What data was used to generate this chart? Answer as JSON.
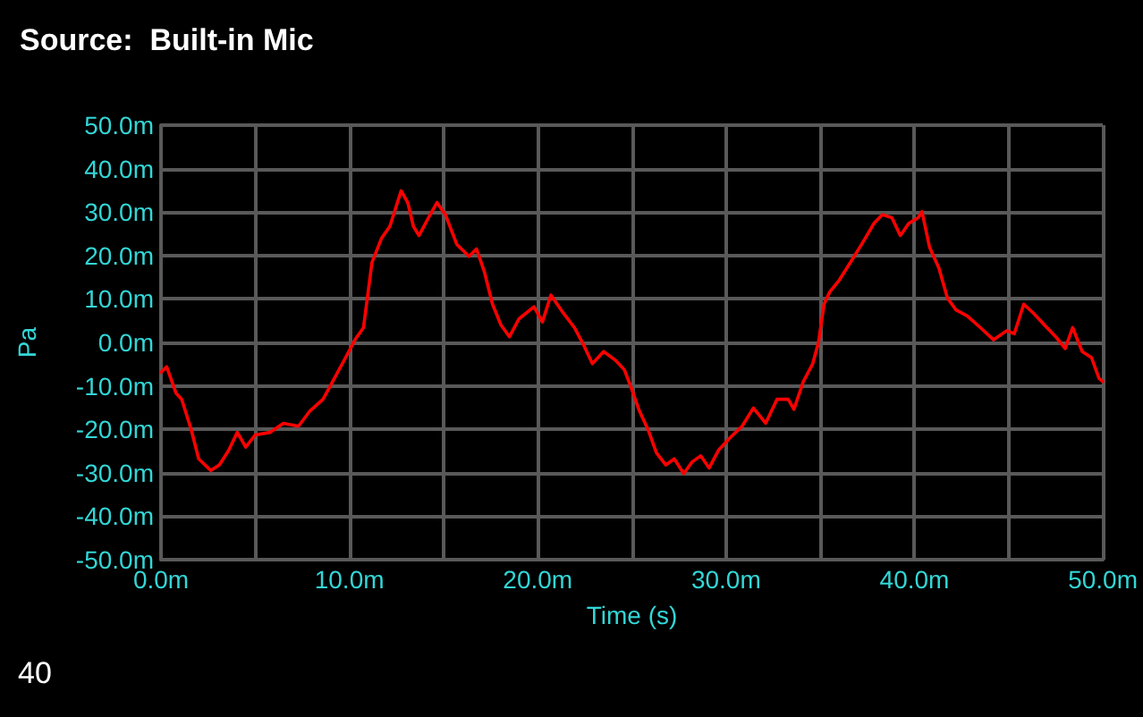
{
  "chart_data": {
    "type": "line",
    "title": "Source:  Built-in Mic",
    "xlabel": "Time (s)",
    "ylabel": "Pa",
    "annotations": [
      "40"
    ],
    "xlim": [
      0,
      50
    ],
    "ylim": [
      -50,
      50
    ],
    "xticks": [
      {
        "value": 0,
        "label": "0.0m"
      },
      {
        "value": 5,
        "label": null
      },
      {
        "value": 10,
        "label": "10.0m"
      },
      {
        "value": 15,
        "label": null
      },
      {
        "value": 20,
        "label": "20.0m"
      },
      {
        "value": 25,
        "label": null
      },
      {
        "value": 30,
        "label": "30.0m"
      },
      {
        "value": 35,
        "label": null
      },
      {
        "value": 40,
        "label": "40.0m"
      },
      {
        "value": 45,
        "label": null
      },
      {
        "value": 50,
        "label": "50.0m"
      }
    ],
    "yticks": [
      {
        "value": -50,
        "label": "-50.0m"
      },
      {
        "value": -40,
        "label": "-40.0m"
      },
      {
        "value": -30,
        "label": "-30.0m"
      },
      {
        "value": -20,
        "label": "-20.0m"
      },
      {
        "value": -10,
        "label": "-10.0m"
      },
      {
        "value": 0,
        "label": "0.0m"
      },
      {
        "value": 10,
        "label": "10.0m"
      },
      {
        "value": 20,
        "label": "20.0m"
      },
      {
        "value": 30,
        "label": "30.0m"
      },
      {
        "value": 40,
        "label": "40.0m"
      },
      {
        "value": 50,
        "label": "50.0m"
      }
    ],
    "grid": true,
    "marker": "none",
    "series": [
      {
        "color": "#ff0000",
        "x": [
          0,
          0.3,
          0.8,
          1.1,
          1.6,
          2,
          2.65,
          3.1,
          3.6,
          4.05,
          4.5,
          5,
          5.8,
          6.5,
          7.3,
          7.9,
          8.6,
          9.2,
          9.8,
          10.3,
          10.75,
          11.2,
          11.7,
          12.15,
          12.45,
          12.75,
          13.1,
          13.4,
          13.7,
          14.2,
          14.65,
          15.1,
          15.7,
          16.35,
          16.75,
          17.15,
          17.6,
          18.05,
          18.5,
          19,
          19.8,
          20.25,
          20.7,
          21.35,
          21.95,
          22.45,
          22.9,
          23.5,
          24.15,
          24.6,
          24.9,
          25.4,
          25.85,
          26.3,
          26.8,
          27.25,
          27.75,
          28.2,
          28.65,
          29.1,
          29.6,
          30.2,
          30.85,
          31.45,
          32.1,
          32.7,
          33.3,
          33.6,
          34.1,
          34.6,
          34.9,
          35.2,
          35.5,
          36,
          36.6,
          37.2,
          37.85,
          38.3,
          38.8,
          39.25,
          39.7,
          40.2,
          40.4,
          40.8,
          41.3,
          41.75,
          42.2,
          42.8,
          43.5,
          44.2,
          44.9,
          45.3,
          45.8,
          46.3,
          46.9,
          47.5,
          48,
          48.4,
          48.9,
          49.4,
          49.8,
          50
        ],
        "values": [
          -6.9,
          -5.6,
          -11.7,
          -13.1,
          -20,
          -26.8,
          -29.5,
          -28.2,
          -24.8,
          -20.7,
          -24.1,
          -21.3,
          -20.7,
          -18.6,
          -19.3,
          -15.8,
          -13.1,
          -8.3,
          -3.5,
          0.6,
          3.4,
          18.4,
          23.9,
          26.7,
          30.8,
          34.9,
          32.2,
          26.7,
          24.6,
          28.7,
          32.2,
          29.4,
          22.6,
          19.8,
          21.5,
          16.5,
          8.8,
          4,
          1.3,
          5.4,
          8.2,
          4.7,
          10.9,
          6.8,
          3.4,
          -0.7,
          -4.9,
          -2.1,
          -4.2,
          -6.3,
          -9.7,
          -15.8,
          -20,
          -25.4,
          -28.2,
          -26.8,
          -30.2,
          -27.5,
          -26.1,
          -28.9,
          -24.8,
          -22,
          -19.3,
          -15.1,
          -18.6,
          -13.1,
          -13.1,
          -15.4,
          -9,
          -4.9,
          -0.1,
          8.8,
          11.6,
          14.3,
          18.4,
          22.6,
          27.4,
          29.4,
          28.7,
          24.6,
          27.4,
          28.7,
          30.1,
          21.9,
          17.1,
          10.2,
          7.5,
          6.1,
          3.4,
          0.6,
          2.7,
          2,
          8.8,
          6.8,
          4,
          1.3,
          -1.4,
          3.4,
          -2.1,
          -3.5,
          -8.3,
          -9
        ]
      }
    ]
  }
}
